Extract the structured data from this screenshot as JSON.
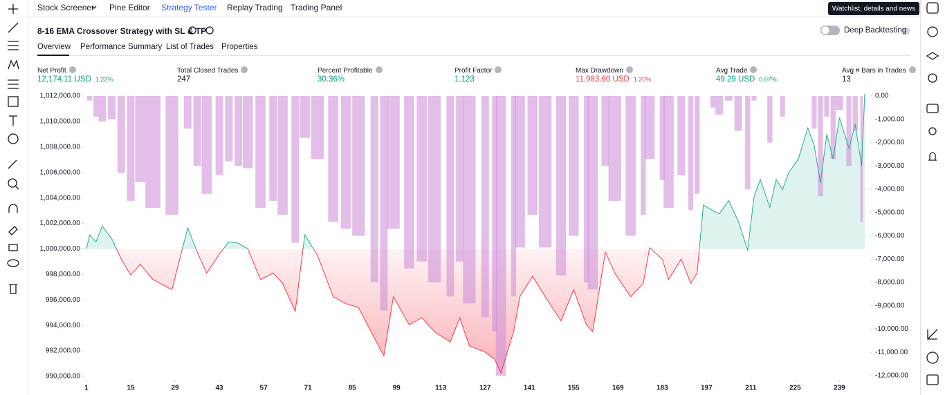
{
  "nav": [
    "Stock Screener",
    "Pine Editor",
    "Strategy Tester",
    "Replay Trading",
    "Trading Panel"
  ],
  "tooltip": "Watchlist, details and news",
  "strategy_title": "8-16 EMA Crossover Strategy with SL & TP",
  "deep_backtesting": "Deep Backtesting",
  "tabs": [
    "Overview",
    "Performance Summary",
    "List of Trades",
    "Properties"
  ],
  "metrics": [
    {
      "label": "Net Profit",
      "value": "12,174.11 USD",
      "change": "1.22%",
      "color": "#089981"
    },
    {
      "label": "Total Closed Trades",
      "value": "247"
    },
    {
      "label": "Percent Profitable",
      "value": "30.36%",
      "color": "#089981"
    },
    {
      "label": "Profit Factor",
      "value": "1.123",
      "color": "#089981"
    },
    {
      "label": "Max Drawdown",
      "value": "11,983.60 USD",
      "change": "1.20%",
      "color": "#f23645"
    },
    {
      "label": "Avg Trade",
      "value": "49.29 USD",
      "change": "0.07%",
      "color": "#089981"
    },
    {
      "label": "Avg # Bars in Trades",
      "value": "13"
    }
  ],
  "chart_data": {
    "type": "line",
    "x": [
      1,
      2,
      4,
      6,
      9,
      12,
      15,
      18,
      22,
      28,
      33,
      36,
      39,
      43,
      46,
      49,
      52,
      56,
      60,
      63,
      67,
      70,
      74,
      79,
      83,
      87,
      92,
      95,
      98,
      103,
      107,
      111,
      116,
      119,
      122,
      127,
      130,
      132,
      136,
      138,
      142,
      146,
      151,
      155,
      159,
      161,
      165,
      168,
      173,
      177,
      179,
      183,
      185,
      189,
      192,
      194,
      196,
      199,
      201,
      204,
      207,
      210,
      212,
      214,
      217,
      219,
      221,
      223,
      226,
      229,
      231,
      233,
      235,
      237,
      239,
      242,
      244,
      246,
      247
    ],
    "xlim": [
      1,
      247
    ],
    "xticks": [
      1,
      15,
      29,
      43,
      57,
      71,
      85,
      99,
      113,
      127,
      141,
      155,
      169,
      183,
      197,
      211,
      225,
      239
    ],
    "series": [
      {
        "color": "#22ab94",
        "negative_color": "#f23645",
        "values": [
          1000000,
          1001100,
          1000550,
          1001800,
          1000800,
          999200,
          997950,
          998800,
          997600,
          996800,
          1001650,
          999750,
          998100,
          999600,
          1000550,
          1000450,
          1000000,
          997600,
          998100,
          997300,
          995100,
          1001100,
          999500,
          996250,
          995700,
          995400,
          993000,
          991600,
          996250,
          994050,
          994600,
          993500,
          992700,
          994600,
          992400,
          991900,
          991350,
          990250,
          993500,
          996250,
          997850,
          996250,
          994350,
          996800,
          994050,
          993500,
          999750,
          998100,
          996250,
          997300,
          1000100,
          999200,
          997600,
          999200,
          997300,
          998100,
          1003450,
          1003000,
          1002750,
          1003800,
          1002200,
          999900,
          1004100,
          1005450,
          1003250,
          1005450,
          1004650,
          1006000,
          1007050,
          1009500,
          1008150,
          1005200,
          1009000,
          1007050,
          1010300,
          1007900,
          1009800,
          1006500,
          1012174
        ]
      },
      {
        "color": "#ce93d8",
        "axis": "y2",
        "values": [
          0,
          -200,
          -900,
          -1100,
          -1000,
          -3300,
          -4500,
          -3700,
          -4800,
          -5100,
          -1400,
          -3000,
          -4200,
          -3400,
          -2800,
          -3000,
          -3100,
          -4800,
          -4500,
          -5100,
          -6300,
          -1800,
          -2700,
          -5400,
          -5700,
          -6000,
          -8000,
          -9200,
          -5700,
          -7400,
          -7100,
          -8000,
          -8600,
          -7100,
          -8900,
          -9500,
          -10100,
          -12000,
          -8600,
          -6500,
          -5100,
          -6500,
          -7700,
          -6000,
          -8000,
          -8300,
          -3000,
          -4500,
          -6000,
          -5100,
          -2700,
          -3600,
          -4800,
          -3400,
          -4900,
          -4200,
          0,
          -500,
          -800,
          -200,
          -1500,
          -4000,
          -200,
          0,
          -2000,
          0,
          -900,
          0,
          0,
          0,
          -1400,
          -4300,
          -900,
          -2700,
          -600,
          -3000,
          -1500,
          -5400,
          0
        ]
      }
    ],
    "ylim": [
      990000,
      1012000
    ],
    "yticks": [
      {
        "value": 990000,
        "label": "990,000.00"
      },
      {
        "value": 992000,
        "label": "992,000.00"
      },
      {
        "value": 994000,
        "label": "994,000.00"
      },
      {
        "value": 996000,
        "label": "996,000.00"
      },
      {
        "value": 998000,
        "label": "998,000.00"
      },
      {
        "value": 1000000,
        "label": "1,000,000.00"
      },
      {
        "value": 1002000,
        "label": "1,002,000.00"
      },
      {
        "value": 1004000,
        "label": "1,004,000.00"
      },
      {
        "value": 1006000,
        "label": "1,006,000.00"
      },
      {
        "value": 1008000,
        "label": "1,008,000.00"
      },
      {
        "value": 1010000,
        "label": "1,010,000.00"
      },
      {
        "value": 1012000,
        "label": "1,012,000.00"
      }
    ],
    "y2lim": [
      -12000,
      0
    ],
    "y2ticks": [
      {
        "value": 0,
        "label": "0.00"
      },
      {
        "value": -1000,
        "label": "-1,000.00"
      },
      {
        "value": -2000,
        "label": "-2,000.00"
      },
      {
        "value": -3000,
        "label": "-3,000.00"
      },
      {
        "value": -4000,
        "label": "-4,000.00"
      },
      {
        "value": -5000,
        "label": "-5,000.00"
      },
      {
        "value": -6000,
        "label": "-6,000.00"
      },
      {
        "value": -7000,
        "label": "-7,000.00"
      },
      {
        "value": -8000,
        "label": "-8,000.00"
      },
      {
        "value": -9000,
        "label": "-9,000.00"
      },
      {
        "value": -10000,
        "label": "-10,000.00"
      },
      {
        "value": -11000,
        "label": "-11,000.00"
      },
      {
        "value": -12000,
        "label": "-12,000.00"
      }
    ]
  }
}
